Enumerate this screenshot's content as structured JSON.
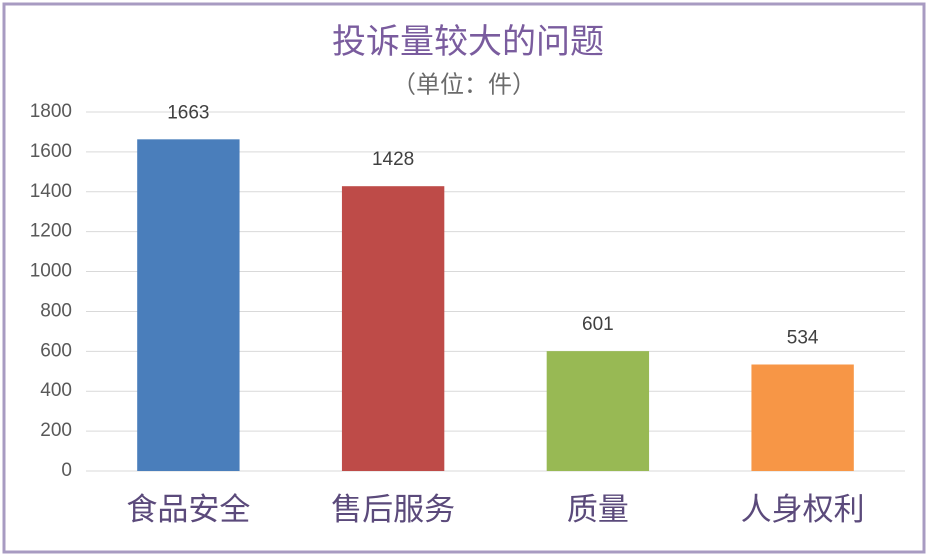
{
  "chart_data": {
    "type": "bar",
    "title": "投诉量较大的问题",
    "subtitle": "（单位：件）",
    "categories": [
      "食品安全",
      "售后服务",
      "质量",
      "人身权利"
    ],
    "values": [
      1663,
      1428,
      601,
      534
    ],
    "colors": [
      "#4a7ebb",
      "#be4b48",
      "#98b954",
      "#f79646"
    ],
    "ylim": [
      0,
      1800
    ],
    "yticks": [
      0,
      200,
      400,
      600,
      800,
      1000,
      1200,
      1400,
      1600,
      1800
    ],
    "grid": true
  }
}
